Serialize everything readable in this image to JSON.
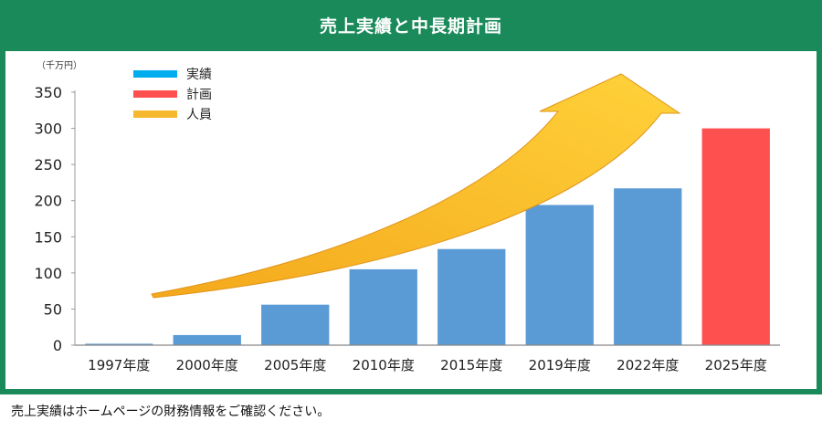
{
  "header": {
    "title": "売上実績と中長期計画"
  },
  "footer": {
    "note": "売上実績はホームページの財務情報をご確認ください。"
  },
  "colors": {
    "frame": "#1a8a5a",
    "actual": "#5b9bd5",
    "plan": "#ff5050",
    "arrow": "#f5b82e"
  },
  "chart_data": {
    "type": "bar",
    "unit_label": "（千万円）",
    "categories": [
      "1997年度",
      "2000年度",
      "2005年度",
      "2010年度",
      "2015年度",
      "2019年度",
      "2022年度",
      "2025年度"
    ],
    "series": [
      {
        "name": "実績",
        "values": [
          2,
          14,
          56,
          105,
          133,
          194,
          217,
          null
        ]
      },
      {
        "name": "計画",
        "values": [
          null,
          null,
          null,
          null,
          null,
          null,
          null,
          300
        ]
      }
    ],
    "legend": [
      {
        "label": "実績",
        "color": "#00aeef"
      },
      {
        "label": "計画",
        "color": "#ff5050"
      },
      {
        "label": "人員",
        "color": "#f5b82e"
      }
    ],
    "yticks": [
      0,
      50,
      100,
      150,
      200,
      250,
      300,
      350
    ],
    "ylim": [
      0,
      350
    ],
    "grid": false,
    "legend_position": "top-left"
  }
}
